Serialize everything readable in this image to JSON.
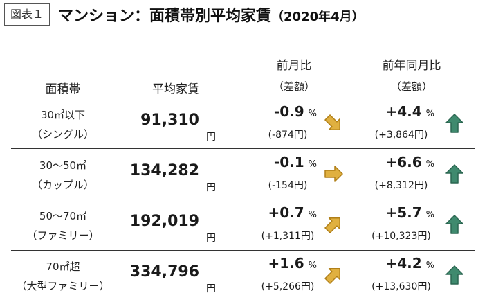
{
  "header": {
    "figure_label": "図表１",
    "title": "マンション：面積帯別平均家賃",
    "period": "（2020年4月）"
  },
  "columns": {
    "area": "面積帯",
    "rent": "平均家賃",
    "mom": "前月比",
    "mom_sub": "（差額）",
    "yoy": "前年同月比",
    "yoy_sub": "（差額）"
  },
  "rows": [
    {
      "label": "30㎡以下",
      "sublabel": "（シングル）",
      "rent": "91,310",
      "yen": "円",
      "mom_pct": "-0.9",
      "mom_unit": "%",
      "mom_diff": "(-874円)",
      "mom_arrow": "down-right-arrow-icon",
      "yoy_pct": "+4.4",
      "yoy_unit": "%",
      "yoy_diff": "(+3,864円)",
      "yoy_arrow": "up-arrow-icon"
    },
    {
      "label": "30～50㎡",
      "sublabel": "（カップル）",
      "rent": "134,282",
      "yen": "円",
      "mom_pct": "-0.1",
      "mom_unit": "%",
      "mom_diff": "(-154円)",
      "mom_arrow": "right-arrow-icon",
      "yoy_pct": "+6.6",
      "yoy_unit": "%",
      "yoy_diff": "(+8,312円)",
      "yoy_arrow": "up-arrow-icon"
    },
    {
      "label": "50～70㎡",
      "sublabel": "（ファミリー）",
      "rent": "192,019",
      "yen": "円",
      "mom_pct": "+0.7",
      "mom_unit": "%",
      "mom_diff": "(+1,311円)",
      "mom_arrow": "up-right-arrow-icon",
      "yoy_pct": "+5.7",
      "yoy_unit": "%",
      "yoy_diff": "(+10,323円)",
      "yoy_arrow": "up-arrow-icon"
    },
    {
      "label": "70㎡超",
      "sublabel": "（大型ファミリー）",
      "rent": "334,796",
      "yen": "円",
      "mom_pct": "+1.6",
      "mom_unit": "%",
      "mom_diff": "(+5,266円)",
      "mom_arrow": "up-right-arrow-icon",
      "yoy_pct": "+4.2",
      "yoy_unit": "%",
      "yoy_diff": "(+13,630円)",
      "yoy_arrow": "up-arrow-icon"
    }
  ],
  "colors": {
    "gold_arrow": "#e0b040",
    "gold_arrow_stroke": "#b07f18",
    "green_arrow": "#3f8a6e",
    "green_arrow_stroke": "#2a6650"
  }
}
